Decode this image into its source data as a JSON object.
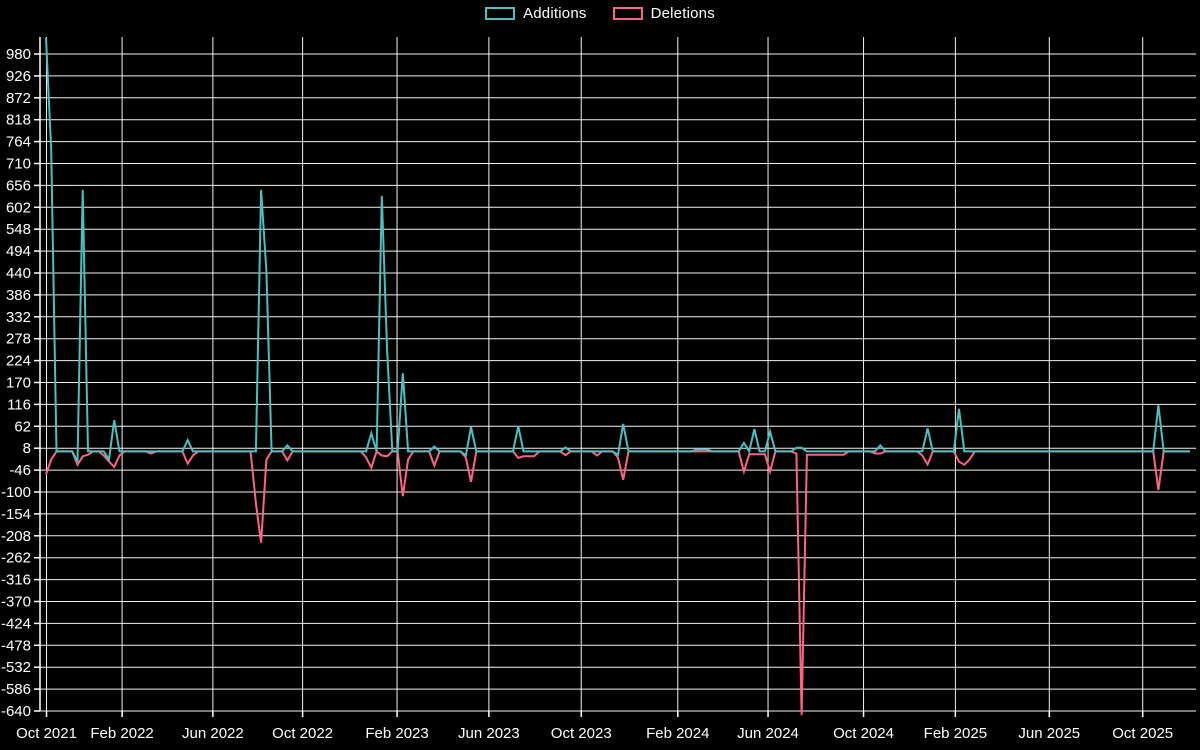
{
  "legend": {
    "items": [
      {
        "label": "Additions",
        "color": "#4bc0c0"
      },
      {
        "label": "Deletions",
        "color": "#ff6384"
      }
    ]
  },
  "colors": {
    "background": "#000000",
    "grid": "#ffffff",
    "text": "#ffffff",
    "additions": "#4bc0c0",
    "deletions": "#ff6384"
  },
  "chart_data": {
    "type": "line",
    "title": "",
    "legend_position": "top-center",
    "grid": true,
    "x_axis": {
      "tick_labels": [
        "Oct 2021",
        "Feb 2022",
        "Jun 2022",
        "Oct 2022",
        "Feb 2023",
        "Jun 2023",
        "Oct 2023",
        "Feb 2024",
        "Jun 2024",
        "Oct 2024",
        "Feb 2025",
        "Jun 2025",
        "Oct 2025"
      ],
      "tick_week_positions": [
        0.1,
        14.5,
        31.8,
        48.9,
        66.9,
        84.4,
        102.0,
        120.4,
        137.6,
        155.8,
        173.3,
        191.2,
        209.0
      ],
      "weeks_total": 219,
      "unit": "weeks since Oct 2021"
    },
    "y_axis": {
      "tick_values": [
        980,
        926,
        872,
        818,
        764,
        710,
        656,
        602,
        548,
        494,
        440,
        386,
        332,
        278,
        224,
        170,
        116,
        62,
        8,
        -46,
        -100,
        -154,
        -208,
        -262,
        -316,
        -370,
        -424,
        -478,
        -532,
        -586,
        -640
      ],
      "min": -652,
      "max": 1022,
      "tick_step": 54
    },
    "note": "Weekly series; weeks not listed in sparse_weekly_values are 0. Week 0 additions and week 144 deletions are clipped by the plot edges.",
    "series": [
      {
        "name": "Additions",
        "color": "#4bc0c0",
        "sparse_weekly_values": {
          "0": 1020,
          "1": 743,
          "6": -25,
          "7": 645,
          "12": -20,
          "13": 77,
          "27": 28,
          "41": 645,
          "42": 445,
          "46": 15,
          "62": 45,
          "64": 630,
          "65": 250,
          "68": 193,
          "74": 12,
          "80": -10,
          "81": 60,
          "90": 62,
          "99": 10,
          "109": -8,
          "110": 68,
          "124": 5,
          "125": 5,
          "126": 5,
          "133": 21,
          "135": 55,
          "138": 49,
          "143": 9,
          "144": 9,
          "159": 15,
          "168": 57,
          "174": 105,
          "212": 114
        }
      },
      {
        "name": "Deletions",
        "color": "#ff6384",
        "sparse_weekly_values": {
          "0": -57,
          "1": -20,
          "6": -33,
          "7": -12,
          "8": -8,
          "11": -10,
          "12": -25,
          "13": -38,
          "14": -10,
          "20": -5,
          "27": -30,
          "28": -10,
          "40": -128,
          "41": -225,
          "42": -20,
          "46": -22,
          "61": -15,
          "62": -40,
          "64": -10,
          "65": -12,
          "68": -110,
          "69": -20,
          "74": -35,
          "80": -15,
          "81": -75,
          "90": -16,
          "91": -12,
          "92": -12,
          "93": -12,
          "99": -9,
          "105": -10,
          "109": -15,
          "110": -70,
          "133": -50,
          "134": -7,
          "135": -7,
          "136": -7,
          "137": -7,
          "138": -50,
          "143": -5,
          "144": -650,
          "145": -8,
          "146": -8,
          "147": -8,
          "148": -8,
          "149": -8,
          "150": -8,
          "151": -8,
          "152": -8,
          "158": -5,
          "159": -5,
          "167": -10,
          "168": -32,
          "174": -25,
          "175": -33,
          "176": -20,
          "212": -95
        }
      }
    ]
  }
}
